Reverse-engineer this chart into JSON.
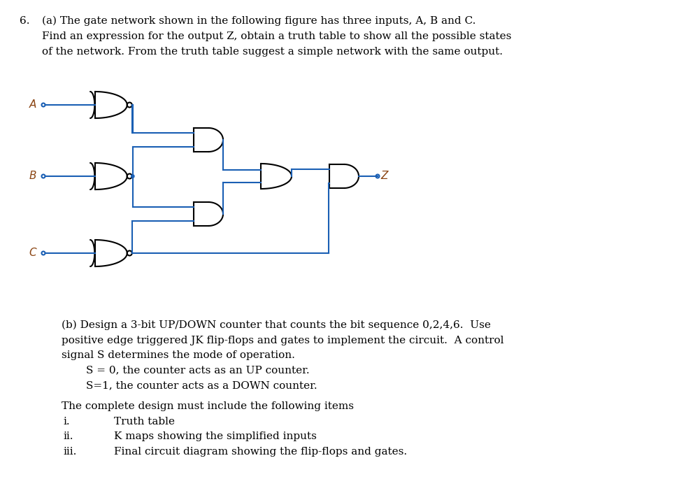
{
  "bg_color": "#ffffff",
  "wire_color": "#1a5fb4",
  "gate_color": "#000000",
  "label_color": "#8B4513",
  "text_color": "#000000",
  "line1": "(a) The gate network shown in the following figure has three inputs, A, B and C.",
  "line2": "Find an expression for the output Z, obtain a truth table to show all the possible states",
  "line3": "of the network. From the truth table suggest a simple network with the same output.",
  "b_title": "(b) Design a 3-bit UP/DOWN counter that counts the bit sequence 0,2,4,6.  Use",
  "b_line2": "positive edge triggered JK flip-flops and gates to implement the circuit.  A control",
  "b_line3": "signal S determines the mode of operation.",
  "b_line4": "S = 0, the counter acts as an UP counter.",
  "b_line5": "S=1, the counter acts as a DOWN counter.",
  "b_line6": "The complete design must include the following items",
  "b_i": "i.",
  "b_i_text": "Truth table",
  "b_ii": "ii.",
  "b_ii_text": "K maps showing the simplified inputs",
  "b_iii": "iii.",
  "b_iii_text": "Final circuit diagram showing the flip-flops and gates."
}
